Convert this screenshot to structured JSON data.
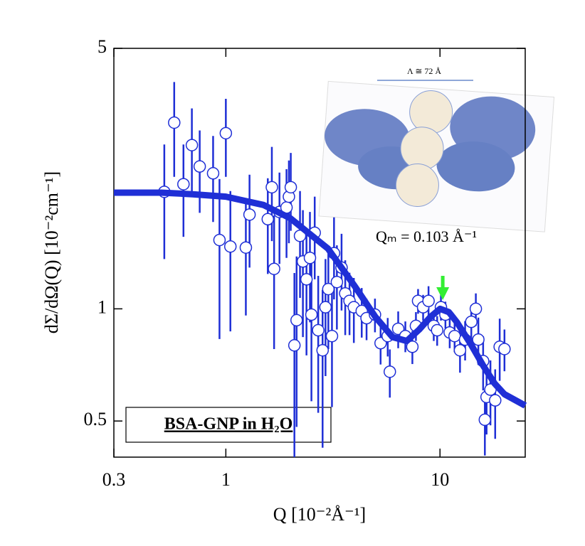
{
  "chart_data": {
    "type": "scatter",
    "xlabel": "Q [10⁻²Å⁻¹]",
    "ylabel": "dΣ/dΩ(Q) [10⁻²cm⁻¹]",
    "xscale": "log",
    "yscale": "log",
    "xlim": [
      0.3,
      25
    ],
    "ylim": [
      0.4,
      5
    ],
    "xticks": [
      0.3,
      1,
      10
    ],
    "yticks": [
      0.5,
      1,
      5
    ],
    "series": [
      {
        "name": "BSA-GNP in H₂O",
        "color": "#1f2fd6",
        "marker": "circle",
        "x": [
          0.516,
          0.574,
          0.634,
          0.694,
          0.755,
          0.872,
          0.934,
          1.0,
          1.05,
          1.24,
          1.29,
          1.57,
          1.64,
          1.68,
          1.78,
          1.92,
          1.97,
          2.01,
          2.09,
          2.14,
          2.22,
          2.29,
          2.38,
          2.47,
          2.51,
          2.6,
          2.7,
          2.83,
          2.92,
          3.01,
          3.13,
          3.2,
          3.3,
          3.47,
          3.61,
          3.78,
          3.96,
          4.31,
          4.54,
          4.97,
          5.28,
          5.7,
          5.83,
          6.38,
          6.89,
          7.43,
          7.72,
          7.9,
          8.34,
          8.84,
          9.35,
          9.7,
          10.1,
          10.6,
          11.1,
          11.7,
          12.4,
          13.1,
          14.0,
          14.7,
          15.1,
          15.9,
          16.5,
          17.2,
          16.2,
          18.1,
          19.0,
          20.0
        ],
        "values": [
          2.06,
          3.16,
          2.16,
          2.75,
          2.41,
          2.31,
          1.53,
          2.96,
          1.47,
          1.46,
          1.79,
          1.74,
          2.12,
          1.28,
          1.82,
          1.87,
          2.0,
          2.12,
          0.798,
          0.932,
          1.57,
          1.34,
          1.2,
          1.37,
          0.965,
          1.6,
          0.876,
          0.774,
          1.01,
          1.13,
          0.845,
          1.41,
          1.18,
          1.29,
          1.1,
          1.05,
          1.01,
          0.987,
          0.944,
          0.965,
          0.809,
          0.845,
          0.678,
          0.884,
          0.845,
          0.791,
          0.9,
          1.05,
          1.01,
          1.05,
          0.9,
          0.876,
          1.01,
          0.965,
          0.864,
          0.845,
          0.774,
          0.827,
          0.923,
          1.0,
          0.827,
          0.724,
          0.58,
          0.607,
          0.504,
          0.568,
          0.791,
          0.78
        ],
        "errors": [
          0.7,
          0.9,
          0.6,
          0.7,
          0.6,
          0.6,
          0.7,
          0.7,
          0.6,
          0.5,
          0.5,
          0.5,
          0.6,
          0.5,
          0.5,
          0.5,
          0.5,
          0.5,
          0.45,
          0.45,
          0.5,
          0.5,
          0.45,
          0.45,
          0.4,
          0.4,
          0.35,
          0.35,
          0.35,
          0.35,
          0.3,
          0.35,
          0.3,
          0.3,
          0.25,
          0.2,
          0.2,
          0.15,
          0.12,
          0.1,
          0.1,
          0.1,
          0.1,
          0.1,
          0.08,
          0.08,
          0.08,
          0.08,
          0.08,
          0.1,
          0.08,
          0.08,
          0.08,
          0.08,
          0.08,
          0.08,
          0.1,
          0.1,
          0.1,
          0.1,
          0.12,
          0.12,
          0.12,
          0.12,
          0.1,
          0.12,
          0.15,
          0.1
        ]
      },
      {
        "color": "#1f2fd6",
        "style": "line",
        "x": [
          0.3,
          0.5,
          0.7,
          1,
          1.5,
          2,
          3,
          4,
          5,
          6,
          7,
          8,
          9,
          10,
          11,
          12,
          14,
          16,
          18,
          20,
          25
        ],
        "values": [
          2.05,
          2.05,
          2.03,
          2.0,
          1.9,
          1.75,
          1.45,
          1.15,
          0.95,
          0.84,
          0.82,
          0.88,
          0.95,
          1.0,
          0.98,
          0.92,
          0.8,
          0.7,
          0.63,
          0.59,
          0.55
        ]
      }
    ],
    "annotation": {
      "text": "Qₘ = 0.103 Å⁻¹",
      "x": 10.3
    },
    "inset_label": "Λ ≅ 72 Å"
  }
}
